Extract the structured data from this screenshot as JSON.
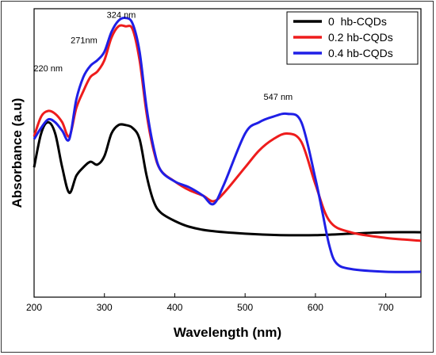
{
  "chart_data": {
    "type": "line",
    "title": "",
    "xlabel": "Wavelength (nm)",
    "ylabel": "Absorbance (a.u)",
    "xlim": [
      200,
      750
    ],
    "ylim": [
      0,
      1
    ],
    "x_ticks": [
      200,
      300,
      400,
      500,
      600,
      700
    ],
    "x_tick_labels": [
      "200",
      "300",
      "400",
      "500",
      "600",
      "700"
    ],
    "y_tick_labels_shown": false,
    "grid": false,
    "legend_position": "top-right",
    "annotations": [
      {
        "text": "220 nm",
        "x": 220,
        "y": 0.8
      },
      {
        "text": "271nm",
        "x": 271,
        "y": 0.9
      },
      {
        "text": "324 nm",
        "x": 324,
        "y": 0.99
      },
      {
        "text": "547 nm",
        "x": 547,
        "y": 0.7
      }
    ],
    "series": [
      {
        "name": "0  hb-CQDs",
        "color": "#000000",
        "x": [
          200,
          210,
          220,
          230,
          240,
          250,
          260,
          270,
          280,
          290,
          300,
          310,
          320,
          330,
          340,
          350,
          360,
          370,
          380,
          400,
          420,
          450,
          500,
          550,
          600,
          650,
          700,
          750
        ],
        "y": [
          0.46,
          0.58,
          0.62,
          0.58,
          0.46,
          0.37,
          0.43,
          0.46,
          0.48,
          0.47,
          0.5,
          0.58,
          0.61,
          0.61,
          0.6,
          0.56,
          0.43,
          0.34,
          0.3,
          0.27,
          0.25,
          0.235,
          0.225,
          0.22,
          0.22,
          0.225,
          0.23,
          0.23
        ]
      },
      {
        "name": "0.2 hb-CQDs",
        "color": "#ee1c1c",
        "x": [
          200,
          210,
          220,
          230,
          240,
          250,
          260,
          270,
          280,
          290,
          300,
          310,
          320,
          330,
          340,
          350,
          360,
          370,
          380,
          400,
          420,
          440,
          455,
          470,
          500,
          520,
          540,
          560,
          580,
          600,
          620,
          650,
          700,
          750
        ],
        "y": [
          0.57,
          0.64,
          0.66,
          0.65,
          0.62,
          0.57,
          0.67,
          0.73,
          0.78,
          0.8,
          0.84,
          0.92,
          0.96,
          0.96,
          0.95,
          0.84,
          0.65,
          0.52,
          0.45,
          0.41,
          0.38,
          0.36,
          0.34,
          0.37,
          0.46,
          0.52,
          0.56,
          0.58,
          0.55,
          0.4,
          0.27,
          0.23,
          0.21,
          0.2
        ]
      },
      {
        "name": "0.4 hb-CQDs",
        "color": "#1f1fe6",
        "x": [
          200,
          210,
          220,
          230,
          240,
          250,
          260,
          270,
          280,
          290,
          300,
          310,
          320,
          330,
          340,
          350,
          360,
          370,
          380,
          400,
          420,
          440,
          455,
          470,
          500,
          520,
          540,
          560,
          580,
          600,
          610,
          620,
          630,
          650,
          700,
          750
        ],
        "y": [
          0.56,
          0.6,
          0.63,
          0.62,
          0.59,
          0.56,
          0.7,
          0.78,
          0.82,
          0.84,
          0.87,
          0.94,
          0.98,
          0.99,
          0.97,
          0.87,
          0.67,
          0.53,
          0.45,
          0.41,
          0.39,
          0.36,
          0.33,
          0.4,
          0.58,
          0.62,
          0.64,
          0.65,
          0.62,
          0.42,
          0.3,
          0.18,
          0.12,
          0.1,
          0.09,
          0.09
        ]
      }
    ]
  }
}
